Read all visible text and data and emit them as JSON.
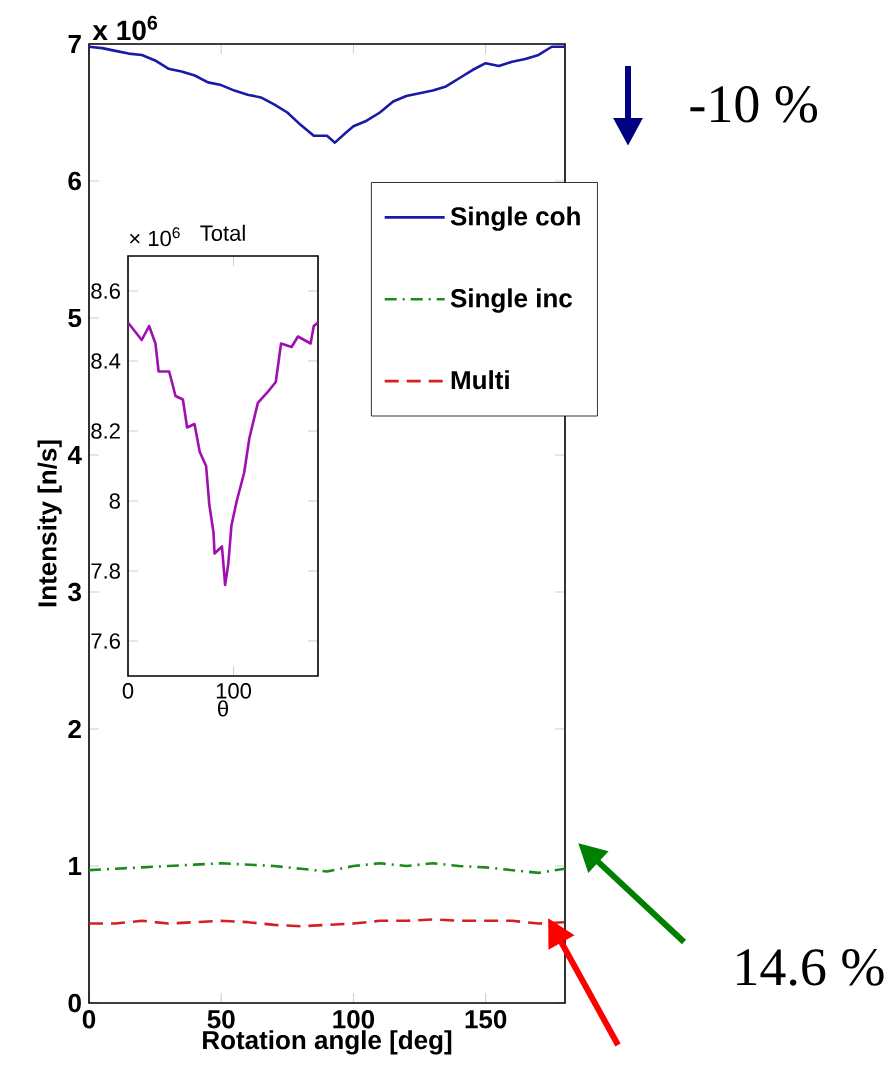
{
  "chart_data": [
    {
      "type": "line",
      "xlabel": "Rotation angle [deg]",
      "ylabel": "Intensity [n/s]",
      "xlim": [
        0,
        180
      ],
      "ylim": [
        0,
        7
      ],
      "xticks": [
        0,
        50,
        100,
        150
      ],
      "yticks": [
        0,
        1,
        2,
        3,
        4,
        5,
        6,
        7
      ],
      "legend": "top right",
      "annotations": [
        "x 10$^{6}$",
        "-10 %",
        "14.6 %"
      ],
      "series": [
        {
          "name": "Single coh",
          "color": "#1a1aa6",
          "line_style": "solid",
          "x": [
            0,
            5,
            10,
            15,
            20,
            25,
            30,
            35,
            40,
            45,
            50,
            55,
            60,
            65,
            70,
            75,
            80,
            85,
            90,
            93,
            97,
            100,
            105,
            110,
            115,
            120,
            125,
            130,
            135,
            140,
            145,
            150,
            155,
            160,
            165,
            170,
            175,
            180
          ],
          "values": [
            6.98,
            6.97,
            6.95,
            6.93,
            6.92,
            6.88,
            6.82,
            6.8,
            6.77,
            6.72,
            6.7,
            6.66,
            6.63,
            6.61,
            6.56,
            6.5,
            6.41,
            6.33,
            6.33,
            6.28,
            6.35,
            6.4,
            6.44,
            6.5,
            6.58,
            6.62,
            6.64,
            6.66,
            6.69,
            6.75,
            6.81,
            6.86,
            6.84,
            6.87,
            6.89,
            6.92,
            6.98,
            6.98
          ]
        },
        {
          "name": "Single inc",
          "color": "#1e8a1e",
          "line_style": "dashdot",
          "x": [
            0,
            10,
            20,
            30,
            40,
            50,
            60,
            70,
            80,
            90,
            100,
            110,
            120,
            130,
            140,
            150,
            160,
            170,
            180
          ],
          "values": [
            0.97,
            0.98,
            0.99,
            1.0,
            1.01,
            1.02,
            1.01,
            1.0,
            0.98,
            0.96,
            1.0,
            1.02,
            1.0,
            1.02,
            1.0,
            0.99,
            0.97,
            0.95,
            0.98
          ]
        },
        {
          "name": "Multi",
          "color": "#d42020",
          "line_style": "dashed",
          "x": [
            0,
            10,
            20,
            30,
            40,
            50,
            60,
            70,
            80,
            90,
            100,
            110,
            120,
            130,
            140,
            150,
            160,
            170,
            180
          ],
          "values": [
            0.58,
            0.58,
            0.6,
            0.58,
            0.59,
            0.6,
            0.59,
            0.57,
            0.56,
            0.57,
            0.58,
            0.6,
            0.6,
            0.61,
            0.6,
            0.6,
            0.6,
            0.58,
            0.59
          ]
        }
      ]
    },
    {
      "type": "line",
      "title": "Total",
      "xlabel": "θ",
      "xlim": [
        0,
        180
      ],
      "ylim": [
        7.5,
        8.7
      ],
      "xticks": [
        0,
        100
      ],
      "yticks": [
        7.6,
        7.8,
        8,
        8.2,
        8.4,
        8.6
      ],
      "annotations": [
        "× 10$^{6}$"
      ],
      "series": [
        {
          "color": "#a010b0",
          "line_style": "solid",
          "x": [
            0,
            13,
            20,
            26,
            29,
            39,
            45,
            52,
            56,
            63,
            68,
            74,
            77,
            81,
            82,
            89,
            92,
            95,
            98,
            103,
            110,
            115,
            123,
            132,
            140,
            145,
            155,
            161,
            173,
            176,
            180
          ],
          "values": [
            8.51,
            8.46,
            8.5,
            8.45,
            8.37,
            8.37,
            8.3,
            8.29,
            8.21,
            8.22,
            8.14,
            8.1,
            7.99,
            7.91,
            7.85,
            7.87,
            7.76,
            7.82,
            7.93,
            8.0,
            8.08,
            8.18,
            8.28,
            8.31,
            8.34,
            8.45,
            8.44,
            8.47,
            8.45,
            8.5,
            8.51
          ]
        }
      ]
    }
  ]
}
